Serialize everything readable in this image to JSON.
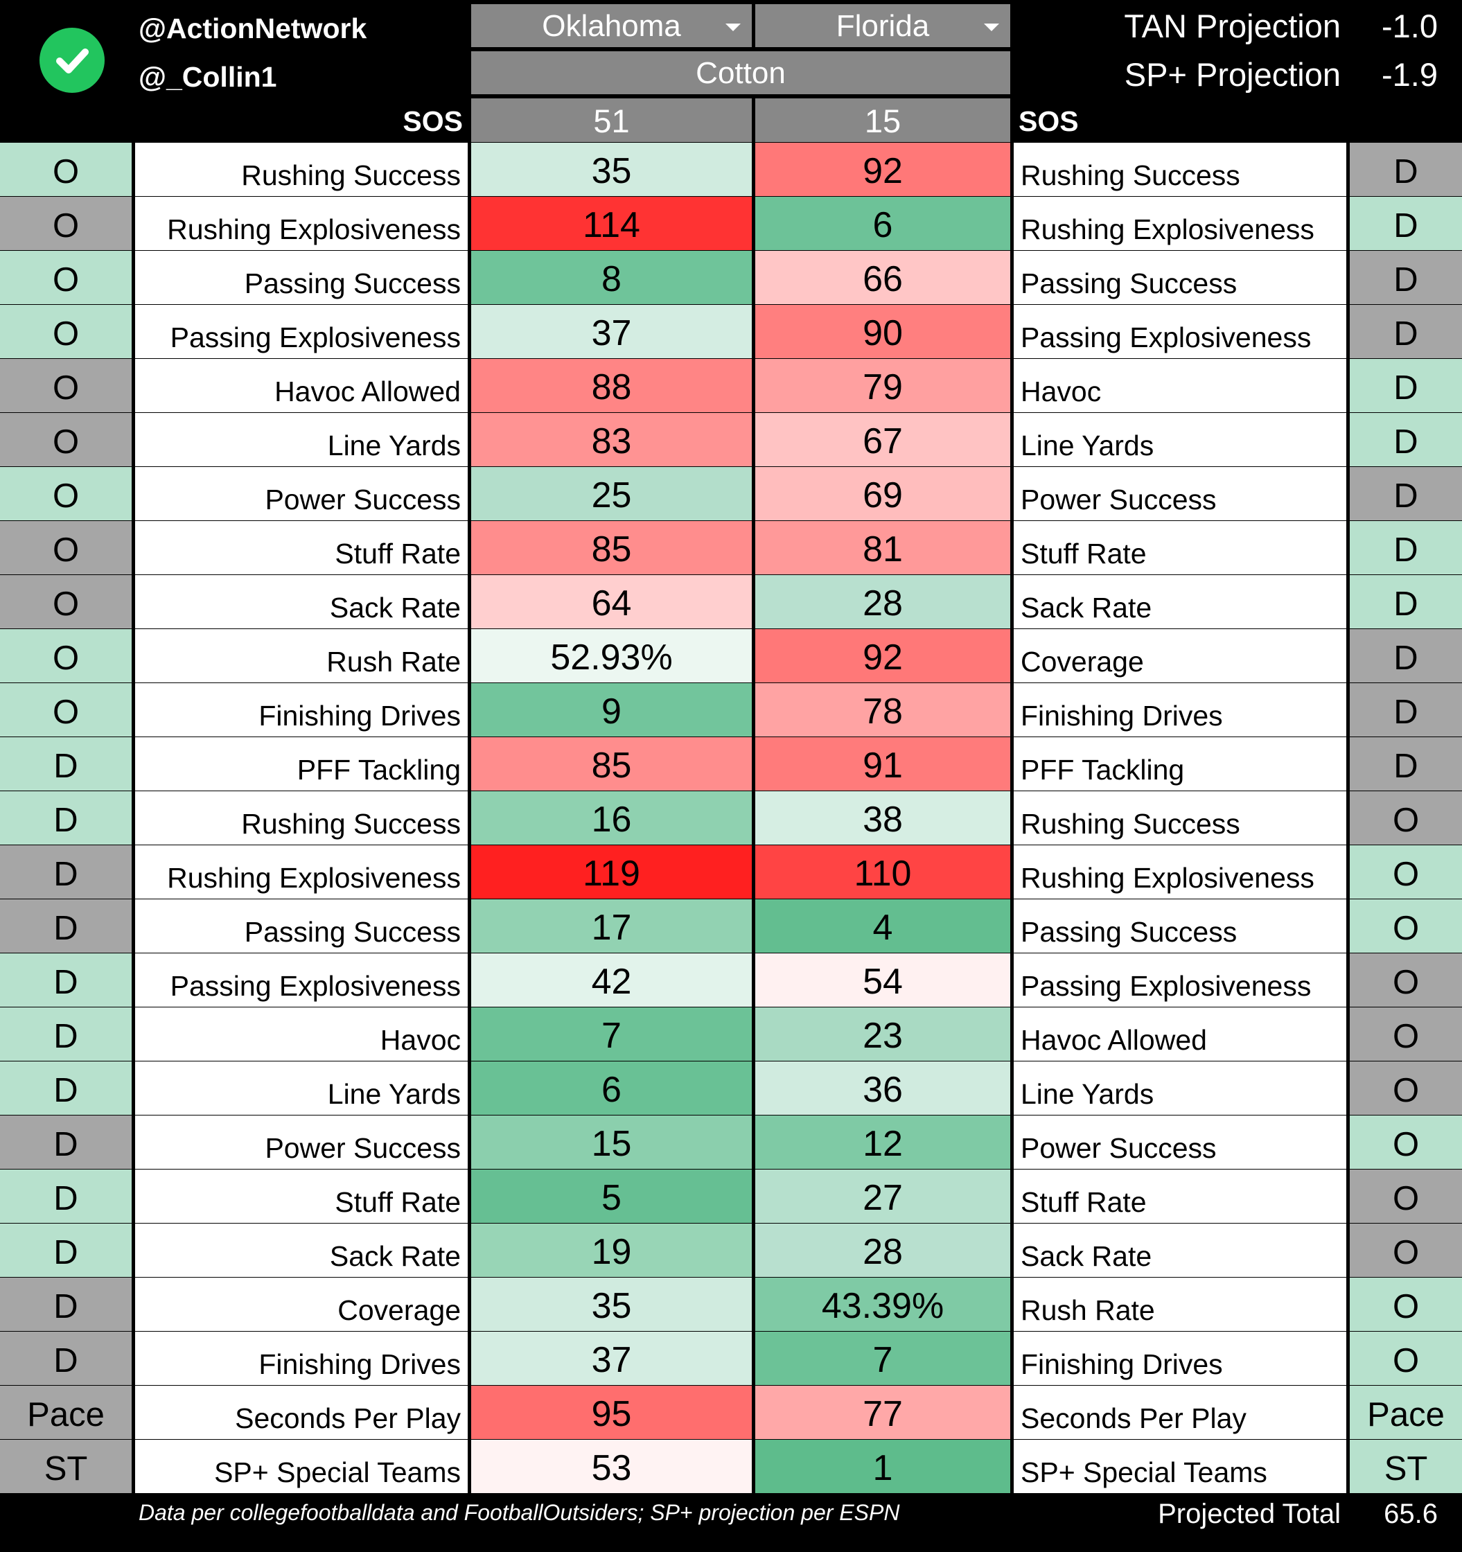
{
  "header": {
    "handles": [
      "@ActionNetwork",
      "@_Collin1"
    ],
    "teams": {
      "left": "Oklahoma",
      "right": "Florida"
    },
    "bowl": "Cotton",
    "projections": [
      {
        "label": "TAN Projection",
        "value": "-1.0"
      },
      {
        "label": "SP+ Projection",
        "value": "-1.9"
      }
    ],
    "sos_label": "SOS",
    "sos": {
      "left": "51",
      "right": "15"
    }
  },
  "colors": {
    "side_green": "#b7e1cd",
    "side_grey": "#a6a6a6",
    "brand_check": "#22c55e"
  },
  "rows": [
    {
      "ls": "O",
      "ll": "Rushing Success",
      "lv": "35",
      "rv": "92",
      "rl": "Rushing Success",
      "rs": "D",
      "lc": "#d0ebdf",
      "rc": "#ff7878",
      "lsc": "#b7e1cd",
      "rsc": "#a6a6a6"
    },
    {
      "ls": "O",
      "ll": "Rushing Explosiveness",
      "lv": "114",
      "rv": "6",
      "rl": "Rushing Explosiveness",
      "rs": "D",
      "lc": "#ff3333",
      "rc": "#6dc298",
      "lsc": "#a6a6a6",
      "rsc": "#b7e1cd"
    },
    {
      "ls": "O",
      "ll": "Passing Success",
      "lv": "8",
      "rv": "66",
      "rl": "Passing Success",
      "rs": "D",
      "lc": "#6fc49a",
      "rc": "#ffc6c6",
      "lsc": "#b7e1cd",
      "rsc": "#a6a6a6"
    },
    {
      "ls": "O",
      "ll": "Passing Explosiveness",
      "lv": "37",
      "rv": "90",
      "rl": "Passing Explosiveness",
      "rs": "D",
      "lc": "#d4ede2",
      "rc": "#ff7f7f",
      "lsc": "#b7e1cd",
      "rsc": "#a6a6a6"
    },
    {
      "ls": "O",
      "ll": "Havoc Allowed",
      "lv": "88",
      "rv": "79",
      "rl": "Havoc",
      "rs": "D",
      "lc": "#ff8585",
      "rc": "#ffa0a0",
      "lsc": "#a6a6a6",
      "rsc": "#b7e1cd"
    },
    {
      "ls": "O",
      "ll": "Line Yards",
      "lv": "83",
      "rv": "67",
      "rl": "Line Yards",
      "rs": "D",
      "lc": "#ff9393",
      "rc": "#ffc3c3",
      "lsc": "#a6a6a6",
      "rsc": "#b7e1cd"
    },
    {
      "ls": "O",
      "ll": "Power Success",
      "lv": "25",
      "rv": "69",
      "rl": "Power Success",
      "rs": "D",
      "lc": "#b3decb",
      "rc": "#ffbdbd",
      "lsc": "#b7e1cd",
      "rsc": "#a6a6a6"
    },
    {
      "ls": "O",
      "ll": "Stuff Rate",
      "lv": "85",
      "rv": "81",
      "rl": "Stuff Rate",
      "rs": "D",
      "lc": "#ff8d8d",
      "rc": "#ff9999",
      "lsc": "#a6a6a6",
      "rsc": "#b7e1cd"
    },
    {
      "ls": "O",
      "ll": "Sack Rate",
      "lv": "64",
      "rv": "28",
      "rl": "Sack Rate",
      "rs": "D",
      "lc": "#ffcfcf",
      "rc": "#b8e0cf",
      "lsc": "#a6a6a6",
      "rsc": "#b7e1cd"
    },
    {
      "ls": "O",
      "ll": "Rush Rate",
      "lv": "52.93%",
      "rv": "92",
      "rl": "Coverage",
      "rs": "D",
      "lc": "#ecf7f1",
      "rc": "#ff7878",
      "lsc": "#b7e1cd",
      "rsc": "#a6a6a6"
    },
    {
      "ls": "O",
      "ll": "Finishing Drives",
      "lv": "9",
      "rv": "78",
      "rl": "Finishing Drives",
      "rs": "D",
      "lc": "#72c59c",
      "rc": "#ffa3a3",
      "lsc": "#b7e1cd",
      "rsc": "#a6a6a6"
    },
    {
      "ls": "D",
      "ll": "PFF Tackling",
      "lv": "85",
      "rv": "91",
      "rl": "PFF Tackling",
      "rs": "D",
      "lc": "#ff8d8d",
      "rc": "#ff7b7b",
      "lsc": "#b7e1cd",
      "rsc": "#a6a6a6"
    },
    {
      "ls": "D",
      "ll": "Rushing Success",
      "lv": "16",
      "rv": "38",
      "rl": "Rushing Success",
      "rs": "O",
      "lc": "#8fd1b0",
      "rc": "#d6eee3",
      "lsc": "#b7e1cd",
      "rsc": "#a6a6a6"
    },
    {
      "ls": "D",
      "ll": "Rushing Explosiveness",
      "lv": "119",
      "rv": "110",
      "rl": "Rushing Explosiveness",
      "rs": "O",
      "lc": "#ff2020",
      "rc": "#ff4444",
      "lsc": "#a6a6a6",
      "rsc": "#b7e1cd"
    },
    {
      "ls": "D",
      "ll": "Passing Success",
      "lv": "17",
      "rv": "4",
      "rl": "Passing Success",
      "rs": "O",
      "lc": "#92d2b2",
      "rc": "#63be90",
      "lsc": "#a6a6a6",
      "rsc": "#b7e1cd"
    },
    {
      "ls": "D",
      "ll": "Passing Explosiveness",
      "lv": "42",
      "rv": "54",
      "rl": "Passing Explosiveness",
      "rs": "O",
      "lc": "#e2f3eb",
      "rc": "#fff1f1",
      "lsc": "#b7e1cd",
      "rsc": "#a6a6a6"
    },
    {
      "ls": "D",
      "ll": "Havoc",
      "lv": "7",
      "rv": "23",
      "rl": "Havoc Allowed",
      "rs": "O",
      "lc": "#6cc297",
      "rc": "#a9dac3",
      "lsc": "#b7e1cd",
      "rsc": "#a6a6a6"
    },
    {
      "ls": "D",
      "ll": "Line Yards",
      "lv": "6",
      "rv": "36",
      "rl": "Line Yards",
      "rs": "O",
      "lc": "#69c195",
      "rc": "#d0ebdf",
      "lsc": "#b7e1cd",
      "rsc": "#a6a6a6"
    },
    {
      "ls": "D",
      "ll": "Power Success",
      "lv": "15",
      "rv": "12",
      "rl": "Power Success",
      "rs": "O",
      "lc": "#8bcfad",
      "rc": "#7fcaa5",
      "lsc": "#a6a6a6",
      "rsc": "#b7e1cd"
    },
    {
      "ls": "D",
      "ll": "Stuff Rate",
      "lv": "5",
      "rv": "27",
      "rl": "Stuff Rate",
      "rs": "O",
      "lc": "#66bf93",
      "rc": "#b6e0cd",
      "lsc": "#b7e1cd",
      "rsc": "#a6a6a6"
    },
    {
      "ls": "D",
      "ll": "Sack Rate",
      "lv": "19",
      "rv": "28",
      "rl": "Sack Rate",
      "rs": "O",
      "lc": "#98d5b6",
      "rc": "#b8e0cf",
      "lsc": "#b7e1cd",
      "rsc": "#a6a6a6"
    },
    {
      "ls": "D",
      "ll": "Coverage",
      "lv": "35",
      "rv": "43.39%",
      "rl": "Rush Rate",
      "rs": "O",
      "lc": "#d0ebdf",
      "rc": "#7fcaa5",
      "lsc": "#a6a6a6",
      "rsc": "#b7e1cd"
    },
    {
      "ls": "D",
      "ll": "Finishing Drives",
      "lv": "37",
      "rv": "7",
      "rl": "Finishing Drives",
      "rs": "O",
      "lc": "#d4ede2",
      "rc": "#6cc297",
      "lsc": "#a6a6a6",
      "rsc": "#b7e1cd"
    },
    {
      "ls": "Pace",
      "ll": "Seconds Per Play",
      "lv": "95",
      "rv": "77",
      "rl": "Seconds Per Play",
      "rs": "Pace",
      "lc": "#ff6e6e",
      "rc": "#ffa8a8",
      "lsc": "#a6a6a6",
      "rsc": "#b7e1cd"
    },
    {
      "ls": "ST",
      "ll": "SP+ Special Teams",
      "lv": "53",
      "rv": "1",
      "rl": "SP+ Special Teams",
      "rs": "ST",
      "lc": "#fff3f3",
      "rc": "#5ebc8c",
      "lsc": "#a6a6a6",
      "rsc": "#b7e1cd"
    }
  ],
  "footer": {
    "note": "Data per collegefootballdata and FootballOutsiders; SP+ projection per ESPN",
    "total_label": "Projected Total",
    "total_value": "65.6"
  }
}
